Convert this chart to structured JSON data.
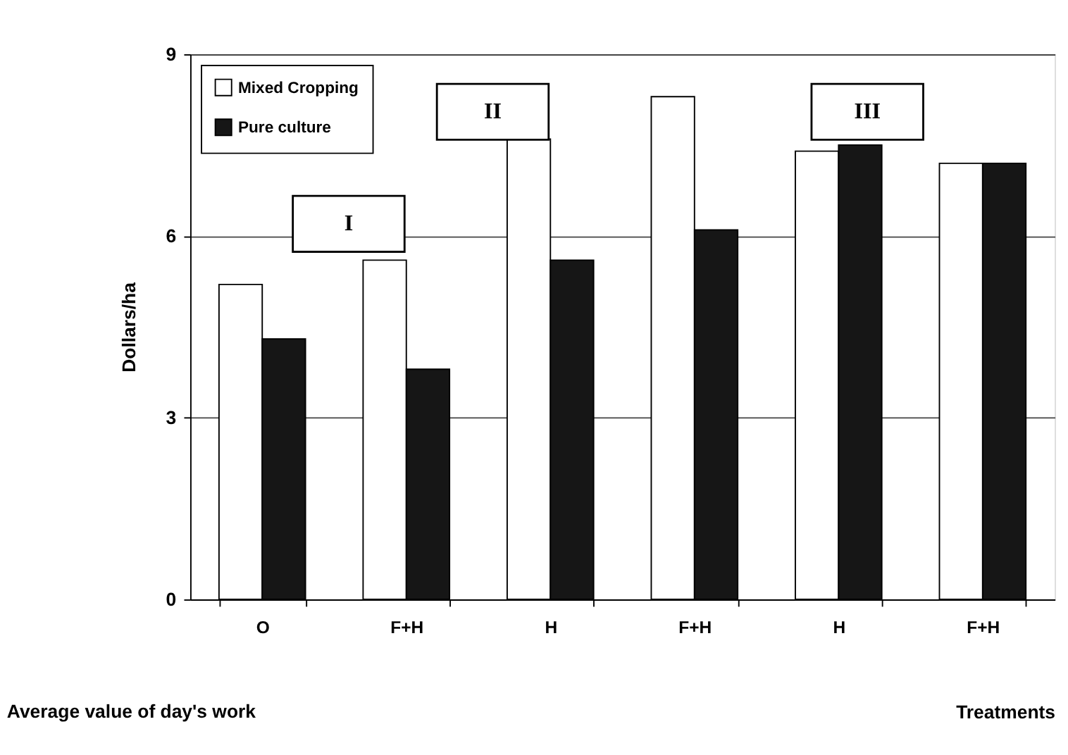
{
  "chart_data": {
    "type": "bar",
    "title": "Average value of day's work",
    "xlabel": "Treatments",
    "ylabel": "Dollars/ha",
    "categories": [
      "O",
      "F+H",
      "H",
      "F+H",
      "H",
      "F+H"
    ],
    "series": [
      {
        "name": "Mixed Cropping",
        "color": "#ffffff",
        "values": [
          5.2,
          5.6,
          7.6,
          8.3,
          7.4,
          7.2
        ]
      },
      {
        "name": "Pure culture",
        "color": "#161616",
        "values": [
          4.3,
          3.8,
          5.6,
          6.1,
          7.5,
          7.2
        ]
      }
    ],
    "annotations": [
      "I",
      "II",
      "III"
    ],
    "ylim": [
      0,
      9
    ],
    "yticks": [
      0,
      3,
      6,
      9
    ],
    "grid": "y",
    "legend": "top left"
  }
}
